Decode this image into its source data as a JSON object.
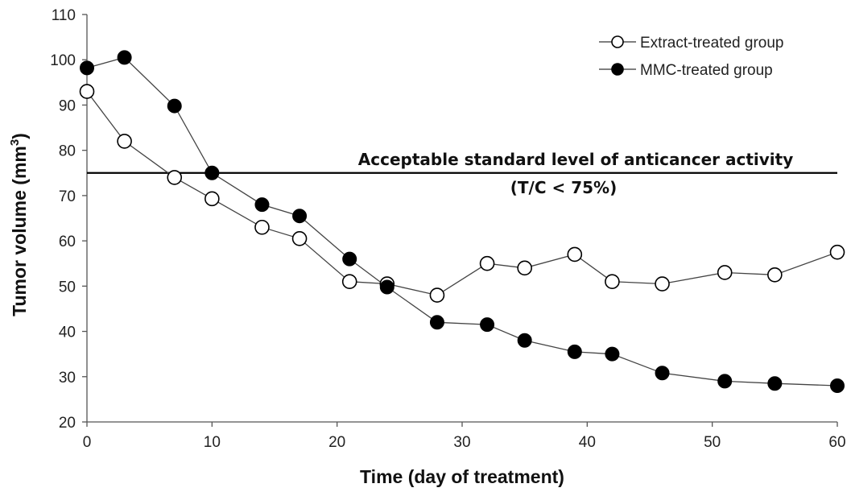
{
  "chart_data": {
    "type": "line",
    "xlabel": "Time (day of treatment)",
    "ylabel_main": "Tumor volume (mm",
    "ylabel_sup": "3",
    "ylabel_close": ")",
    "xlim": [
      0,
      60
    ],
    "ylim": [
      20,
      110
    ],
    "xticks": [
      0,
      10,
      20,
      30,
      40,
      50,
      60
    ],
    "yticks": [
      20,
      30,
      40,
      50,
      60,
      70,
      80,
      90,
      100,
      110
    ],
    "grid": false,
    "legend_position": "top-right",
    "series": [
      {
        "name": "Extract-treated group",
        "marker": "open-circle",
        "x": [
          0,
          3,
          7,
          10,
          14,
          17,
          21,
          24,
          28,
          32,
          35,
          39,
          42,
          46,
          51,
          55,
          60
        ],
        "y": [
          93,
          82,
          74,
          69.3,
          63,
          60.5,
          51,
          50.5,
          48,
          55,
          54,
          57,
          51,
          50.5,
          53,
          52.5,
          57.5
        ]
      },
      {
        "name": "MMC-treated group",
        "marker": "filled-circle",
        "x": [
          0,
          3,
          7,
          10,
          14,
          17,
          21,
          24,
          28,
          32,
          35,
          39,
          42,
          46,
          51,
          55,
          60
        ],
        "y": [
          98.2,
          100.5,
          89.8,
          75,
          68,
          65.5,
          56,
          49.8,
          42,
          41.5,
          38,
          35.5,
          35,
          30.8,
          29,
          28.5,
          28
        ]
      }
    ],
    "reference_line": {
      "y": 75,
      "label_line1": "Acceptable standard level of anticancer activity",
      "label_line2": "(T/C < 75%)"
    }
  }
}
